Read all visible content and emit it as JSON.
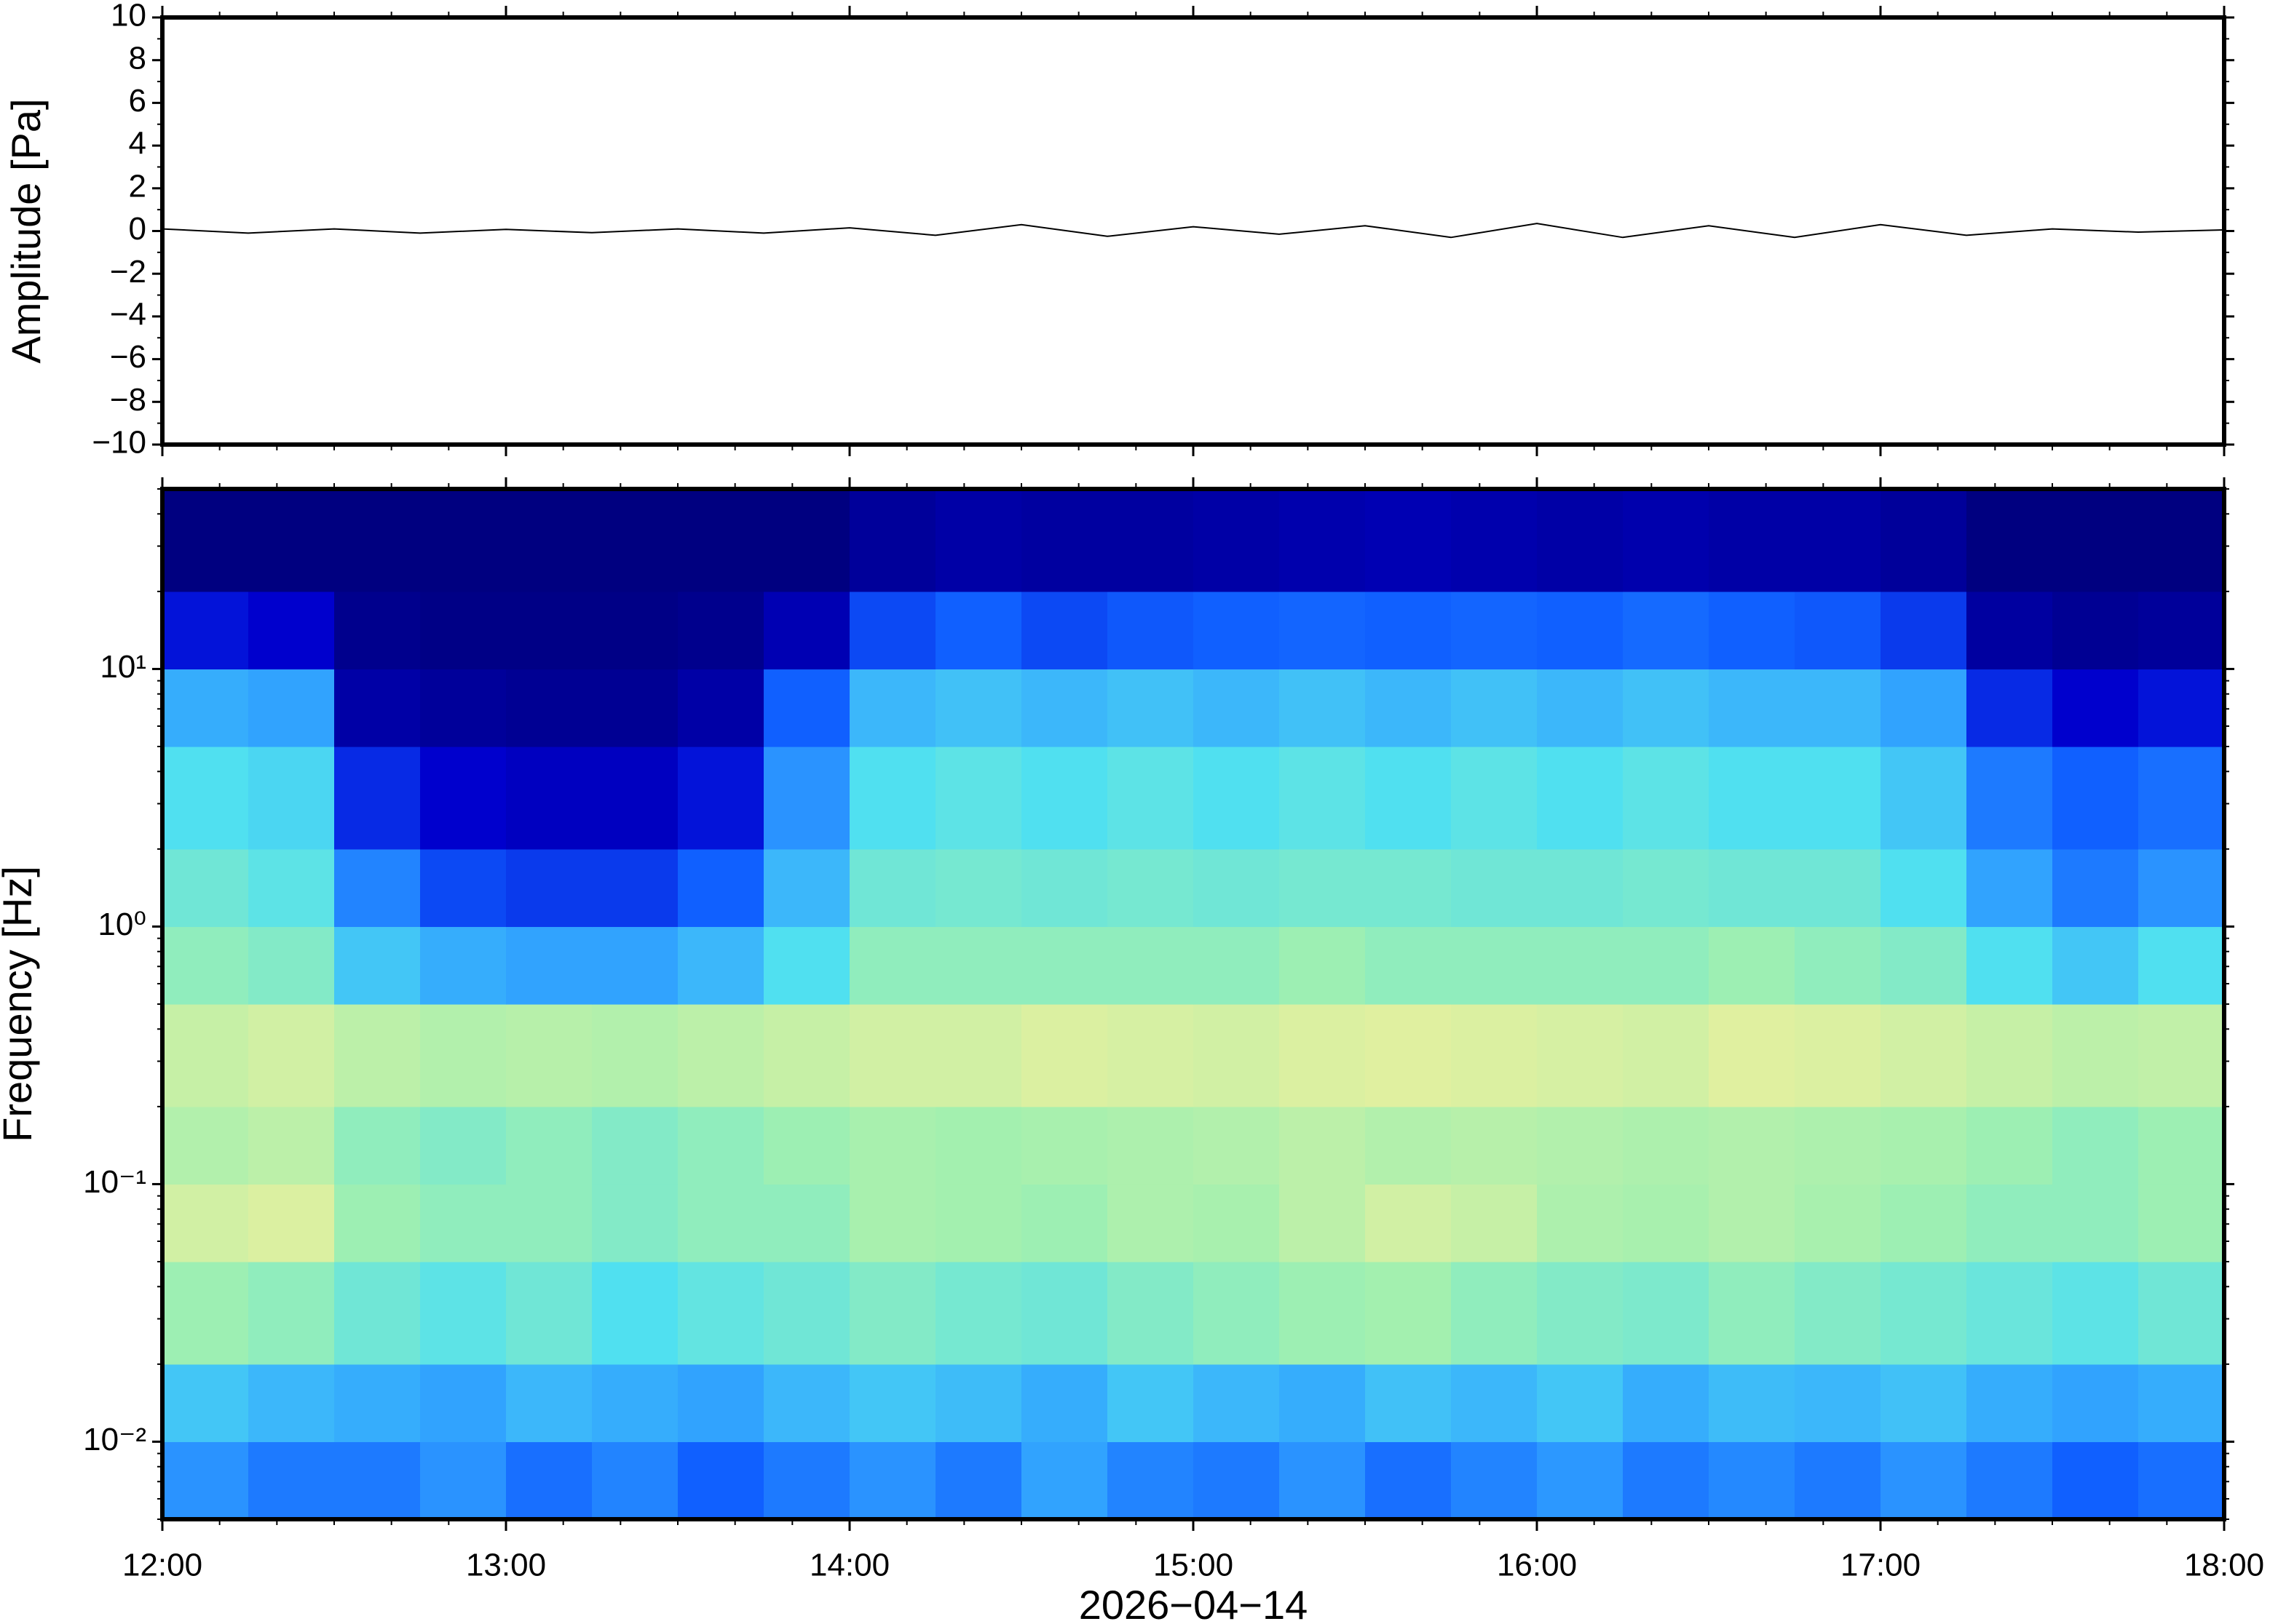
{
  "chart_data": [
    {
      "type": "line",
      "ylabel": "Amplitude [Pa]",
      "color": "#000000",
      "xlim": [
        12,
        18
      ],
      "x": [
        12,
        12.25,
        12.5,
        12.75,
        13,
        13.25,
        13.5,
        13.75,
        14,
        14.25,
        14.5,
        14.75,
        15,
        15.25,
        15.5,
        15.75,
        16,
        16.25,
        16.5,
        16.75,
        17,
        17.25,
        17.5,
        17.75,
        18
      ],
      "values": [
        0.1,
        -0.1,
        0.1,
        -0.1,
        0.08,
        -0.08,
        0.1,
        -0.1,
        0.15,
        -0.2,
        0.3,
        -0.25,
        0.2,
        -0.15,
        0.25,
        -0.3,
        0.35,
        -0.3,
        0.25,
        -0.3,
        0.3,
        -0.2,
        0.1,
        -0.05,
        0.05
      ],
      "ylim": [
        -10,
        10
      ],
      "yticks": [
        {
          "value": -10,
          "label": "−10"
        },
        {
          "value": -8,
          "label": "−8"
        },
        {
          "value": -6,
          "label": "−6"
        },
        {
          "value": -4,
          "label": "−4"
        },
        {
          "value": -2,
          "label": "−2"
        },
        0,
        2,
        4,
        6,
        8,
        10
      ]
    },
    {
      "type": "heatmap",
      "ylabel": "Frequency [Hz]",
      "xlabel": "2026−04−14",
      "log_y": true,
      "xlim": [
        12,
        18
      ],
      "xticks": [
        {
          "value": 12,
          "label": "12:00"
        },
        {
          "value": 13,
          "label": "13:00"
        },
        {
          "value": 14,
          "label": "14:00"
        },
        {
          "value": 15,
          "label": "15:00"
        },
        {
          "value": 16,
          "label": "16:00"
        },
        {
          "value": 17,
          "label": "17:00"
        },
        {
          "value": 18,
          "label": "18:00"
        }
      ],
      "ylim": [
        0.005,
        50
      ],
      "yticks": [
        {
          "value": 0.01,
          "label": "10⁻²"
        },
        {
          "value": 0.1,
          "label": "10⁻¹"
        },
        {
          "value": 1,
          "label": "10⁰"
        },
        {
          "value": 10,
          "label": "10¹"
        }
      ],
      "colormap": [
        "#000080",
        "#0000d0",
        "#1060ff",
        "#30a0ff",
        "#50e0f0",
        "#a0f0b0",
        "#e0f0a0",
        "#f8e080",
        "#f0b060"
      ],
      "xbins": [
        12,
        12.25,
        12.5,
        12.75,
        13,
        13.25,
        13.5,
        13.75,
        14,
        14.25,
        14.5,
        14.75,
        15,
        15.25,
        15.5,
        15.75,
        16,
        16.25,
        16.5,
        16.75,
        17,
        17.25,
        17.5,
        17.75,
        18
      ],
      "ybins": [
        0.005,
        0.01,
        0.02,
        0.05,
        0.1,
        0.2,
        0.5,
        1,
        2,
        5,
        10,
        20,
        50
      ],
      "z": [
        [
          0.35,
          0.3,
          0.3,
          0.35,
          0.28,
          0.32,
          0.25,
          0.3,
          0.35,
          0.3,
          0.38,
          0.32,
          0.3,
          0.35,
          0.28,
          0.32,
          0.36,
          0.3,
          0.33,
          0.3,
          0.35,
          0.3,
          0.25,
          0.28
        ],
        [
          0.45,
          0.42,
          0.4,
          0.38,
          0.42,
          0.4,
          0.38,
          0.42,
          0.45,
          0.43,
          0.4,
          0.45,
          0.42,
          0.4,
          0.44,
          0.42,
          0.45,
          0.4,
          0.43,
          0.42,
          0.44,
          0.4,
          0.38,
          0.4
        ],
        [
          0.62,
          0.6,
          0.55,
          0.52,
          0.55,
          0.5,
          0.53,
          0.55,
          0.58,
          0.56,
          0.55,
          0.58,
          0.6,
          0.62,
          0.63,
          0.6,
          0.58,
          0.57,
          0.6,
          0.58,
          0.56,
          0.54,
          0.52,
          0.55
        ],
        [
          0.72,
          0.74,
          0.62,
          0.6,
          0.6,
          0.58,
          0.6,
          0.6,
          0.64,
          0.63,
          0.62,
          0.65,
          0.64,
          0.68,
          0.72,
          0.7,
          0.65,
          0.64,
          0.66,
          0.64,
          0.62,
          0.6,
          0.6,
          0.62
        ],
        [
          0.66,
          0.68,
          0.6,
          0.58,
          0.6,
          0.58,
          0.6,
          0.62,
          0.64,
          0.63,
          0.64,
          0.65,
          0.66,
          0.68,
          0.66,
          0.67,
          0.66,
          0.65,
          0.66,
          0.65,
          0.64,
          0.62,
          0.6,
          0.62
        ],
        [
          0.7,
          0.72,
          0.68,
          0.66,
          0.67,
          0.66,
          0.68,
          0.7,
          0.72,
          0.72,
          0.74,
          0.73,
          0.72,
          0.74,
          0.75,
          0.74,
          0.73,
          0.72,
          0.75,
          0.74,
          0.72,
          0.7,
          0.68,
          0.69
        ],
        [
          0.6,
          0.58,
          0.45,
          0.4,
          0.38,
          0.38,
          0.42,
          0.5,
          0.6,
          0.6,
          0.6,
          0.6,
          0.6,
          0.62,
          0.6,
          0.6,
          0.6,
          0.6,
          0.62,
          0.6,
          0.58,
          0.5,
          0.45,
          0.5
        ],
        [
          0.55,
          0.52,
          0.32,
          0.22,
          0.2,
          0.2,
          0.25,
          0.42,
          0.55,
          0.56,
          0.55,
          0.56,
          0.55,
          0.56,
          0.56,
          0.55,
          0.55,
          0.56,
          0.55,
          0.55,
          0.5,
          0.38,
          0.3,
          0.35
        ],
        [
          0.5,
          0.48,
          0.18,
          0.12,
          0.1,
          0.1,
          0.15,
          0.35,
          0.5,
          0.52,
          0.5,
          0.52,
          0.5,
          0.52,
          0.5,
          0.52,
          0.5,
          0.52,
          0.5,
          0.5,
          0.45,
          0.3,
          0.25,
          0.28
        ],
        [
          0.4,
          0.38,
          0.06,
          0.04,
          0.03,
          0.03,
          0.06,
          0.25,
          0.42,
          0.44,
          0.42,
          0.44,
          0.42,
          0.44,
          0.42,
          0.44,
          0.42,
          0.44,
          0.42,
          0.42,
          0.38,
          0.18,
          0.12,
          0.15
        ],
        [
          0.15,
          0.12,
          0.02,
          0.01,
          0.01,
          0.01,
          0.02,
          0.08,
          0.22,
          0.25,
          0.22,
          0.24,
          0.25,
          0.26,
          0.25,
          0.26,
          0.25,
          0.27,
          0.25,
          0.24,
          0.2,
          0.05,
          0.03,
          0.04
        ],
        [
          0,
          0,
          0,
          0,
          0,
          0,
          0,
          0,
          0.04,
          0.06,
          0.05,
          0.05,
          0.06,
          0.07,
          0.08,
          0.07,
          0.06,
          0.07,
          0.06,
          0.06,
          0.04,
          0,
          0,
          0
        ]
      ]
    }
  ]
}
